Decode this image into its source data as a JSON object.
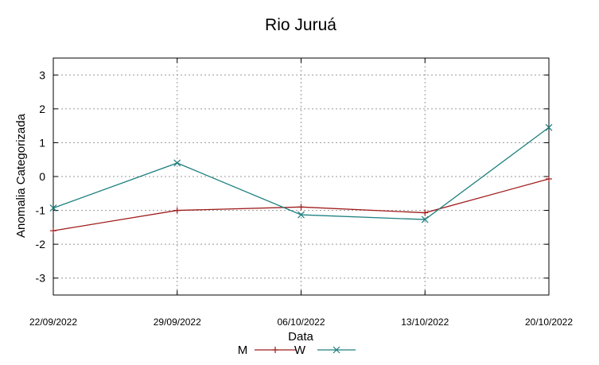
{
  "chart_data": {
    "type": "line",
    "title": "Rio Juruá",
    "xlabel": "Data",
    "ylabel": "Anomalia Categorizada",
    "categories": [
      "22/09/2022",
      "29/09/2022",
      "06/10/2022",
      "13/10/2022",
      "20/10/2022"
    ],
    "yticks": [
      "3",
      "2",
      "1",
      "0",
      "-1",
      "-2",
      "-3"
    ],
    "ylim": [
      -3.5,
      3.5
    ],
    "grid": true,
    "legend_position": "bottom",
    "series": [
      {
        "name": "M",
        "marker": "+",
        "color": "#a01c1c",
        "values": [
          -1.6,
          -1.0,
          -0.9,
          -1.07,
          -0.07
        ]
      },
      {
        "name": "W",
        "marker": "x",
        "color": "#1f7f7f",
        "values": [
          -0.93,
          0.4,
          -1.13,
          -1.27,
          1.45
        ]
      }
    ]
  }
}
